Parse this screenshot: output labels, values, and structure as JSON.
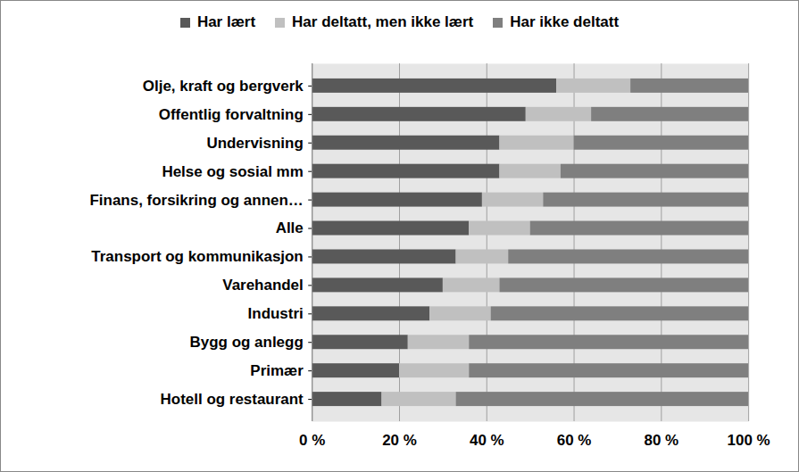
{
  "chart_data": {
    "type": "bar",
    "orientation": "horizontal",
    "stacked": true,
    "legend": "top",
    "grid": true,
    "categories": [
      "Olje, kraft og bergverk",
      "Offentlig forvaltning",
      "Undervisning",
      "Helse og sosial mm",
      "Finans, forsikring og annen…",
      "Alle",
      "Transport og kommunikasjon",
      "Varehandel",
      "Industri",
      "Bygg og anlegg",
      "Primær",
      "Hotell og restaurant"
    ],
    "series": [
      {
        "name": "Har lært",
        "color": "#595959",
        "values": [
          56,
          49,
          43,
          43,
          39,
          36,
          33,
          30,
          27,
          22,
          20,
          16
        ]
      },
      {
        "name": "Har deltatt, men ikke lært",
        "color": "#c0c0c0",
        "values": [
          17,
          15,
          17,
          14,
          14,
          14,
          12,
          13,
          14,
          14,
          16,
          17
        ]
      },
      {
        "name": "Har ikke deltatt",
        "color": "#7f7f7f",
        "values": [
          27,
          36,
          40,
          43,
          47,
          50,
          55,
          57,
          59,
          64,
          64,
          67
        ]
      }
    ],
    "xlim": [
      0,
      100
    ],
    "xticks": [
      {
        "value": 0,
        "label": "0 %"
      },
      {
        "value": 20,
        "label": "20 %"
      },
      {
        "value": 40,
        "label": "40 %"
      },
      {
        "value": 60,
        "label": "60 %"
      },
      {
        "value": 80,
        "label": "80 %"
      },
      {
        "value": 100,
        "label": "100 %"
      }
    ]
  }
}
